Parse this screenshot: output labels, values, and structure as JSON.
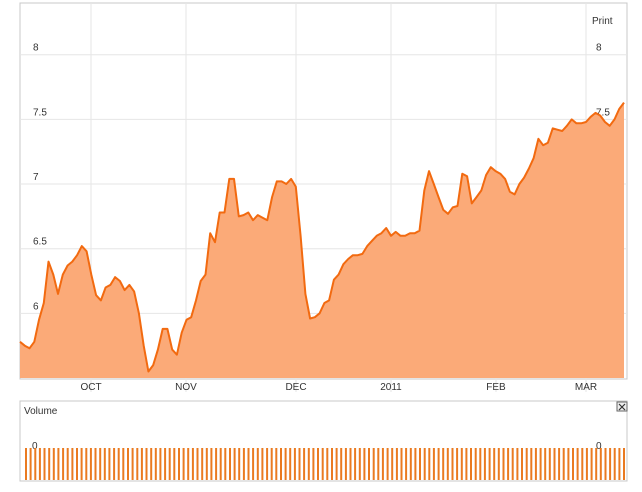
{
  "toolbar": {
    "print_label": "Print"
  },
  "volume": {
    "label": "Volume",
    "tick_label": "0"
  },
  "colors": {
    "price_line": "#f26a10",
    "price_fill": "#fbaa78",
    "volume_bar": "#ea7a20",
    "grid": "#e6e6e6",
    "axis_text": "#333333"
  },
  "chart_data": [
    {
      "type": "area",
      "title": "",
      "xlabel": "",
      "ylabel": "",
      "x_tick_labels": [
        "OCT",
        "NOV",
        "DEC",
        "2011",
        "FEB",
        "MAR"
      ],
      "y_ticks": [
        6,
        6.5,
        7,
        7.5,
        8
      ],
      "ylim": [
        5.5,
        8.4
      ],
      "grid": true,
      "series": [
        {
          "values": [
            5.78,
            5.75,
            5.73,
            5.78,
            5.95,
            6.08,
            6.4,
            6.3,
            6.15,
            6.3,
            6.37,
            6.4,
            6.45,
            6.52,
            6.48,
            6.3,
            6.14,
            6.1,
            6.2,
            6.22,
            6.28,
            6.25,
            6.18,
            6.22,
            6.17,
            6.0,
            5.75,
            5.55,
            5.6,
            5.72,
            5.88,
            5.88,
            5.72,
            5.68,
            5.85,
            5.95,
            5.97,
            6.1,
            6.25,
            6.3,
            6.62,
            6.55,
            6.78,
            6.78,
            7.04,
            7.04,
            6.75,
            6.76,
            6.78,
            6.72,
            6.76,
            6.74,
            6.72,
            6.9,
            7.02,
            7.02,
            7.0,
            7.04,
            6.98,
            6.6,
            6.15,
            5.96,
            5.97,
            6.0,
            6.08,
            6.1,
            6.26,
            6.3,
            6.38,
            6.42,
            6.45,
            6.45,
            6.46,
            6.52,
            6.56,
            6.6,
            6.62,
            6.66,
            6.6,
            6.63,
            6.6,
            6.6,
            6.62,
            6.62,
            6.64,
            6.95,
            7.1,
            7.0,
            6.9,
            6.8,
            6.77,
            6.82,
            6.83,
            7.08,
            7.06,
            6.85,
            6.9,
            6.95,
            7.07,
            7.13,
            7.1,
            7.08,
            7.04,
            6.94,
            6.92,
            7.0,
            7.05,
            7.12,
            7.2,
            7.35,
            7.3,
            7.32,
            7.43,
            7.42,
            7.41,
            7.45,
            7.5,
            7.47,
            7.47,
            7.48,
            7.52,
            7.55,
            7.53,
            7.48,
            7.45,
            7.5,
            7.58,
            7.63
          ]
        }
      ]
    },
    {
      "type": "bar",
      "title": "Volume",
      "ylabel": "",
      "y_ticks": [
        0
      ],
      "values": [
        0,
        0,
        0,
        0,
        0,
        0,
        0,
        0,
        0,
        0,
        0,
        0,
        0,
        0,
        0,
        0,
        0,
        0,
        0,
        0,
        0,
        0,
        0,
        0,
        0,
        0,
        0,
        0,
        0,
        0,
        0,
        0,
        0,
        0,
        0,
        0,
        0,
        0,
        0,
        0,
        0,
        0,
        0,
        0,
        0,
        0,
        0,
        0,
        0,
        0,
        0,
        0,
        0,
        0,
        0,
        0,
        0,
        0,
        0,
        0,
        0,
        0,
        0,
        0,
        0,
        0,
        0,
        0,
        0,
        0,
        0,
        0,
        0,
        0,
        0,
        0,
        0,
        0,
        0,
        0,
        0,
        0,
        0,
        0,
        0,
        0,
        0,
        0,
        0,
        0,
        0,
        0,
        0,
        0,
        0,
        0,
        0,
        0,
        0,
        0,
        0,
        0,
        0,
        0,
        0,
        0,
        0,
        0,
        0,
        0,
        0,
        0,
        0,
        0,
        0,
        0,
        0,
        0,
        0,
        0,
        0,
        0,
        0,
        0,
        0,
        0,
        0,
        0,
        0,
        0
      ]
    }
  ]
}
